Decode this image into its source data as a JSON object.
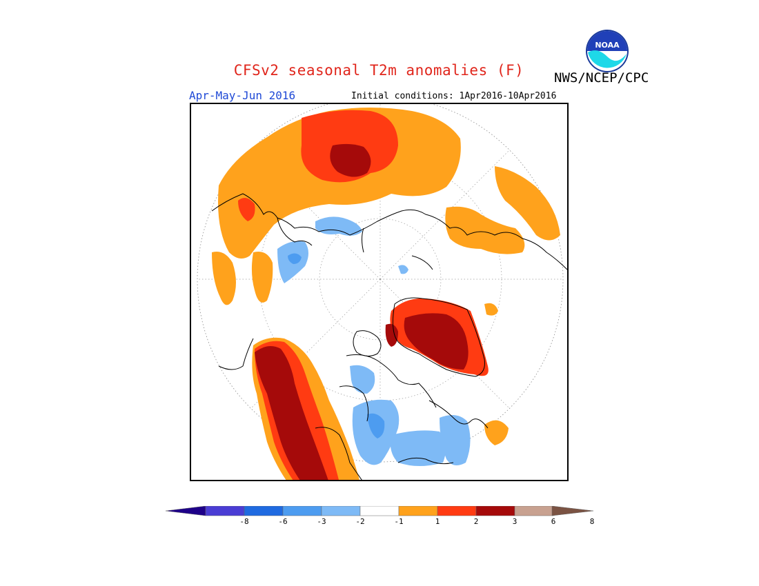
{
  "header": {
    "title": "CFSv2 seasonal T2m anomalies (F)",
    "agency": "NWS/NCEP/CPC",
    "logo_text": "NOAA"
  },
  "subheader": {
    "season": "Apr-May-Jun 2016",
    "initial_conditions": "Initial conditions: 1Apr2016-10Apr2016"
  },
  "map": {
    "projection": "north polar stereographic",
    "variable": "T2m anomalies",
    "units": "F"
  },
  "legend": {
    "colors": [
      "#1e0089",
      "#4a3dd4",
      "#1f6ae0",
      "#4d9cf0",
      "#7ebaf6",
      "#ffffff",
      "#ffa21c",
      "#ff3b12",
      "#a50a0a",
      "#c8a190",
      "#7b5343"
    ],
    "tick_labels": [
      "-8",
      "-6",
      "-3",
      "-2",
      "-1",
      "1",
      "2",
      "3",
      "6",
      "8"
    ]
  }
}
